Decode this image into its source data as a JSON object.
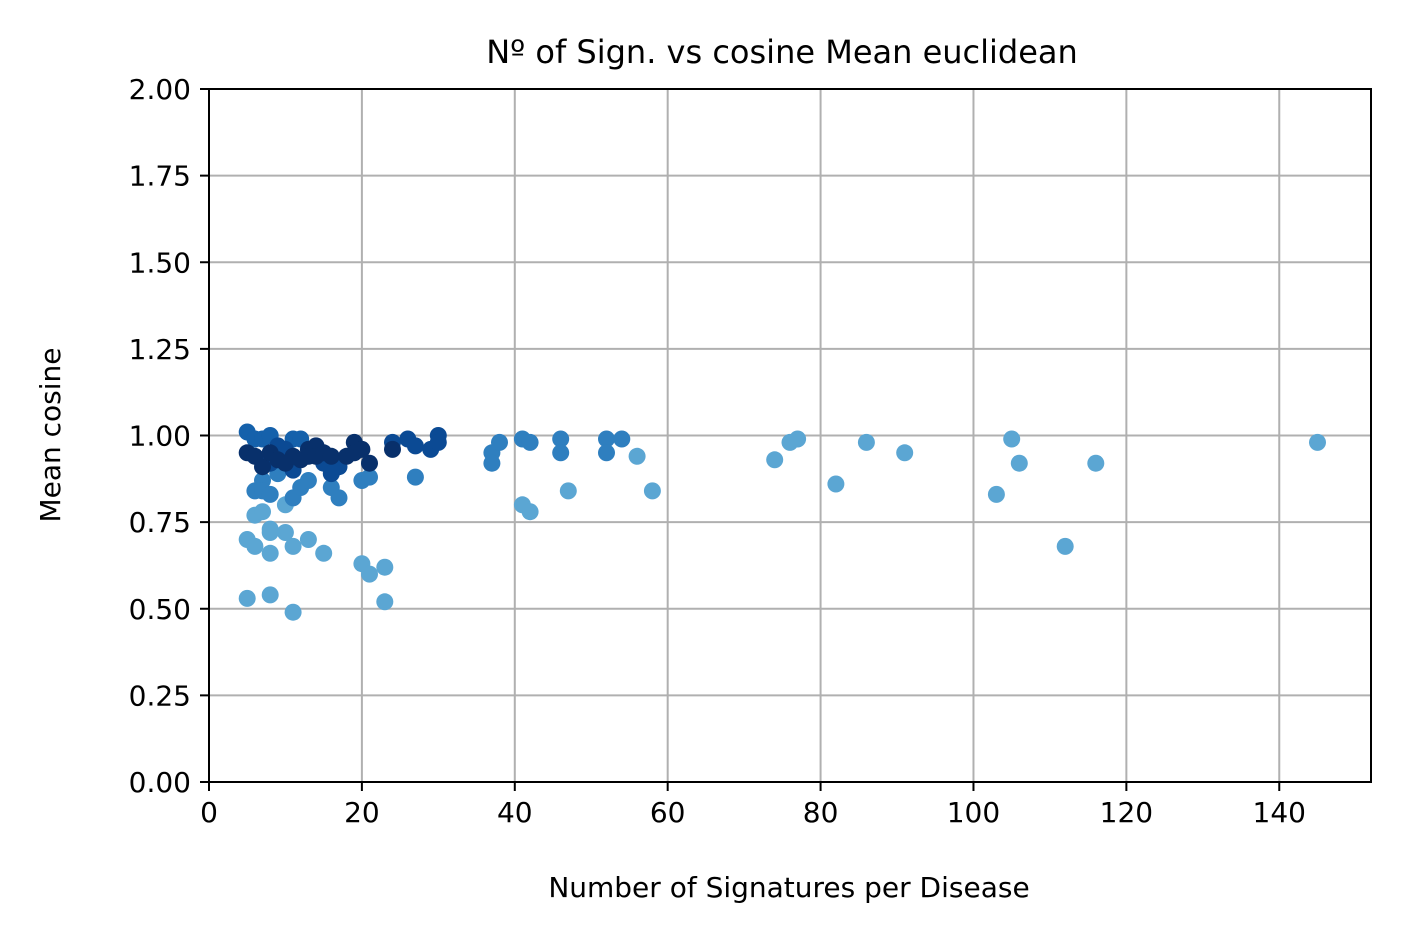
{
  "chart_data": {
    "type": "scatter",
    "title": "Nº of Sign. vs cosine Mean euclidean",
    "xlabel": "Number of Signatures per Disease",
    "ylabel": "Mean cosine",
    "xlim": [
      0,
      152
    ],
    "ylim": [
      0,
      2
    ],
    "xticks": [
      0,
      20,
      40,
      60,
      80,
      100,
      120,
      140
    ],
    "xtick_labels": [
      "0",
      "20",
      "40",
      "60",
      "80",
      "100",
      "120",
      "140"
    ],
    "yticks": [
      0,
      0.25,
      0.5,
      0.75,
      1.0,
      1.25,
      1.5,
      1.75,
      2.0
    ],
    "ytick_labels": [
      "0.00",
      "0.25",
      "0.50",
      "0.75",
      "1.00",
      "1.25",
      "1.50",
      "1.75",
      "2.00"
    ],
    "grid": true,
    "legend": "none",
    "colors": {
      "light": "#5ba6d3",
      "medium": "#2f7fbf",
      "blue": "#1561ab",
      "dark": "#0b4a94",
      "darkest": "#08306b"
    },
    "points": [
      {
        "x": 5,
        "y": 1.01,
        "c": "blue"
      },
      {
        "x": 5,
        "y": 0.95,
        "c": "darkest"
      },
      {
        "x": 5,
        "y": 0.7,
        "c": "light"
      },
      {
        "x": 5,
        "y": 0.53,
        "c": "light"
      },
      {
        "x": 6,
        "y": 0.99,
        "c": "blue"
      },
      {
        "x": 6,
        "y": 0.94,
        "c": "darkest"
      },
      {
        "x": 6,
        "y": 0.84,
        "c": "medium"
      },
      {
        "x": 6,
        "y": 0.77,
        "c": "light"
      },
      {
        "x": 6,
        "y": 0.68,
        "c": "light"
      },
      {
        "x": 7,
        "y": 0.99,
        "c": "blue"
      },
      {
        "x": 7,
        "y": 0.93,
        "c": "dark"
      },
      {
        "x": 7,
        "y": 0.91,
        "c": "darkest"
      },
      {
        "x": 7,
        "y": 0.87,
        "c": "medium"
      },
      {
        "x": 7,
        "y": 0.84,
        "c": "medium"
      },
      {
        "x": 7,
        "y": 0.78,
        "c": "light"
      },
      {
        "x": 8,
        "y": 1.0,
        "c": "blue"
      },
      {
        "x": 8,
        "y": 0.95,
        "c": "darkest"
      },
      {
        "x": 8,
        "y": 0.92,
        "c": "dark"
      },
      {
        "x": 8,
        "y": 0.83,
        "c": "medium"
      },
      {
        "x": 8,
        "y": 0.73,
        "c": "light"
      },
      {
        "x": 8,
        "y": 0.72,
        "c": "light"
      },
      {
        "x": 8,
        "y": 0.66,
        "c": "light"
      },
      {
        "x": 8,
        "y": 0.54,
        "c": "light"
      },
      {
        "x": 9,
        "y": 0.97,
        "c": "dark"
      },
      {
        "x": 9,
        "y": 0.93,
        "c": "darkest"
      },
      {
        "x": 9,
        "y": 0.89,
        "c": "medium"
      },
      {
        "x": 10,
        "y": 0.96,
        "c": "dark"
      },
      {
        "x": 10,
        "y": 0.92,
        "c": "darkest"
      },
      {
        "x": 10,
        "y": 0.8,
        "c": "light"
      },
      {
        "x": 10,
        "y": 0.72,
        "c": "light"
      },
      {
        "x": 11,
        "y": 0.99,
        "c": "blue"
      },
      {
        "x": 11,
        "y": 0.94,
        "c": "darkest"
      },
      {
        "x": 11,
        "y": 0.9,
        "c": "dark"
      },
      {
        "x": 11,
        "y": 0.82,
        "c": "medium"
      },
      {
        "x": 11,
        "y": 0.68,
        "c": "light"
      },
      {
        "x": 11,
        "y": 0.49,
        "c": "light"
      },
      {
        "x": 12,
        "y": 0.99,
        "c": "blue"
      },
      {
        "x": 12,
        "y": 0.93,
        "c": "darkest"
      },
      {
        "x": 12,
        "y": 0.85,
        "c": "medium"
      },
      {
        "x": 13,
        "y": 0.96,
        "c": "darkest"
      },
      {
        "x": 13,
        "y": 0.94,
        "c": "darkest"
      },
      {
        "x": 13,
        "y": 0.87,
        "c": "medium"
      },
      {
        "x": 13,
        "y": 0.7,
        "c": "light"
      },
      {
        "x": 14,
        "y": 0.97,
        "c": "darkest"
      },
      {
        "x": 14,
        "y": 0.94,
        "c": "darkest"
      },
      {
        "x": 15,
        "y": 0.95,
        "c": "darkest"
      },
      {
        "x": 15,
        "y": 0.92,
        "c": "dark"
      },
      {
        "x": 15,
        "y": 0.66,
        "c": "light"
      },
      {
        "x": 16,
        "y": 0.94,
        "c": "darkest"
      },
      {
        "x": 16,
        "y": 0.89,
        "c": "dark"
      },
      {
        "x": 16,
        "y": 0.85,
        "c": "medium"
      },
      {
        "x": 17,
        "y": 0.91,
        "c": "dark"
      },
      {
        "x": 17,
        "y": 0.82,
        "c": "medium"
      },
      {
        "x": 18,
        "y": 0.94,
        "c": "darkest"
      },
      {
        "x": 19,
        "y": 0.98,
        "c": "darkest"
      },
      {
        "x": 19,
        "y": 0.95,
        "c": "darkest"
      },
      {
        "x": 20,
        "y": 0.96,
        "c": "darkest"
      },
      {
        "x": 20,
        "y": 0.87,
        "c": "medium"
      },
      {
        "x": 20,
        "y": 0.63,
        "c": "light"
      },
      {
        "x": 21,
        "y": 0.92,
        "c": "darkest"
      },
      {
        "x": 21,
        "y": 0.88,
        "c": "medium"
      },
      {
        "x": 21,
        "y": 0.6,
        "c": "light"
      },
      {
        "x": 23,
        "y": 0.62,
        "c": "light"
      },
      {
        "x": 23,
        "y": 0.52,
        "c": "light"
      },
      {
        "x": 24,
        "y": 0.98,
        "c": "dark"
      },
      {
        "x": 24,
        "y": 0.96,
        "c": "darkest"
      },
      {
        "x": 26,
        "y": 0.99,
        "c": "dark"
      },
      {
        "x": 27,
        "y": 0.97,
        "c": "dark"
      },
      {
        "x": 27,
        "y": 0.88,
        "c": "medium"
      },
      {
        "x": 29,
        "y": 0.96,
        "c": "dark"
      },
      {
        "x": 30,
        "y": 1.0,
        "c": "dark"
      },
      {
        "x": 30,
        "y": 0.98,
        "c": "dark"
      },
      {
        "x": 37,
        "y": 0.95,
        "c": "medium"
      },
      {
        "x": 37,
        "y": 0.92,
        "c": "medium"
      },
      {
        "x": 38,
        "y": 0.98,
        "c": "medium"
      },
      {
        "x": 41,
        "y": 0.99,
        "c": "medium"
      },
      {
        "x": 41,
        "y": 0.8,
        "c": "light"
      },
      {
        "x": 42,
        "y": 0.98,
        "c": "medium"
      },
      {
        "x": 42,
        "y": 0.78,
        "c": "light"
      },
      {
        "x": 46,
        "y": 0.99,
        "c": "medium"
      },
      {
        "x": 46,
        "y": 0.95,
        "c": "medium"
      },
      {
        "x": 47,
        "y": 0.84,
        "c": "light"
      },
      {
        "x": 52,
        "y": 0.99,
        "c": "medium"
      },
      {
        "x": 52,
        "y": 0.95,
        "c": "medium"
      },
      {
        "x": 54,
        "y": 0.99,
        "c": "medium"
      },
      {
        "x": 56,
        "y": 0.94,
        "c": "light"
      },
      {
        "x": 58,
        "y": 0.84,
        "c": "light"
      },
      {
        "x": 74,
        "y": 0.93,
        "c": "light"
      },
      {
        "x": 76,
        "y": 0.98,
        "c": "light"
      },
      {
        "x": 77,
        "y": 0.99,
        "c": "light"
      },
      {
        "x": 82,
        "y": 0.86,
        "c": "light"
      },
      {
        "x": 86,
        "y": 0.98,
        "c": "light"
      },
      {
        "x": 91,
        "y": 0.95,
        "c": "light"
      },
      {
        "x": 103,
        "y": 0.83,
        "c": "light"
      },
      {
        "x": 105,
        "y": 0.99,
        "c": "light"
      },
      {
        "x": 106,
        "y": 0.92,
        "c": "light"
      },
      {
        "x": 112,
        "y": 0.68,
        "c": "light"
      },
      {
        "x": 116,
        "y": 0.92,
        "c": "light"
      },
      {
        "x": 145,
        "y": 0.98,
        "c": "light"
      }
    ]
  }
}
